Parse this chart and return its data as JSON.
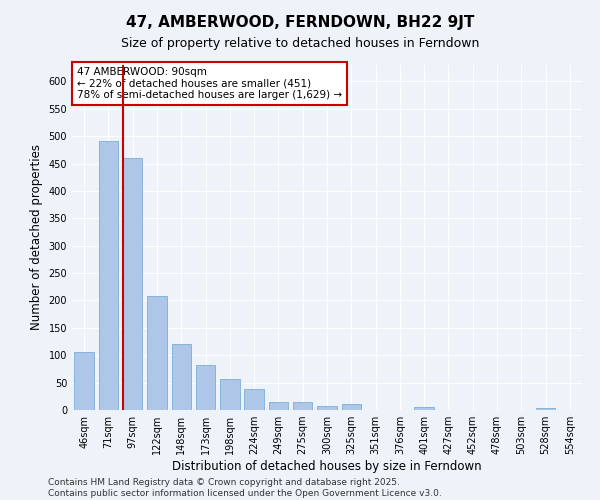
{
  "title": "47, AMBERWOOD, FERNDOWN, BH22 9JT",
  "subtitle": "Size of property relative to detached houses in Ferndown",
  "xlabel": "Distribution of detached houses by size in Ferndown",
  "ylabel": "Number of detached properties",
  "categories": [
    "46sqm",
    "71sqm",
    "97sqm",
    "122sqm",
    "148sqm",
    "173sqm",
    "198sqm",
    "224sqm",
    "249sqm",
    "275sqm",
    "300sqm",
    "325sqm",
    "351sqm",
    "376sqm",
    "401sqm",
    "427sqm",
    "452sqm",
    "478sqm",
    "503sqm",
    "528sqm",
    "554sqm"
  ],
  "values": [
    106,
    492,
    460,
    208,
    120,
    83,
    57,
    38,
    14,
    15,
    8,
    11,
    0,
    0,
    5,
    0,
    0,
    0,
    0,
    3,
    0
  ],
  "bar_color": "#aec6e8",
  "bar_edge_color": "#7aafd6",
  "vline_color": "#cc0000",
  "vline_x_index": 2,
  "annotation_text": "47 AMBERWOOD: 90sqm\n← 22% of detached houses are smaller (451)\n78% of semi-detached houses are larger (1,629) →",
  "annotation_box_color": "#ffffff",
  "annotation_box_edge_color": "#cc0000",
  "ylim": [
    0,
    630
  ],
  "yticks": [
    0,
    50,
    100,
    150,
    200,
    250,
    300,
    350,
    400,
    450,
    500,
    550,
    600
  ],
  "background_color": "#eef2f9",
  "grid_color": "#ffffff",
  "footer_text": "Contains HM Land Registry data © Crown copyright and database right 2025.\nContains public sector information licensed under the Open Government Licence v3.0.",
  "title_fontsize": 11,
  "subtitle_fontsize": 9,
  "label_fontsize": 8.5,
  "tick_fontsize": 7,
  "footer_fontsize": 6.5
}
